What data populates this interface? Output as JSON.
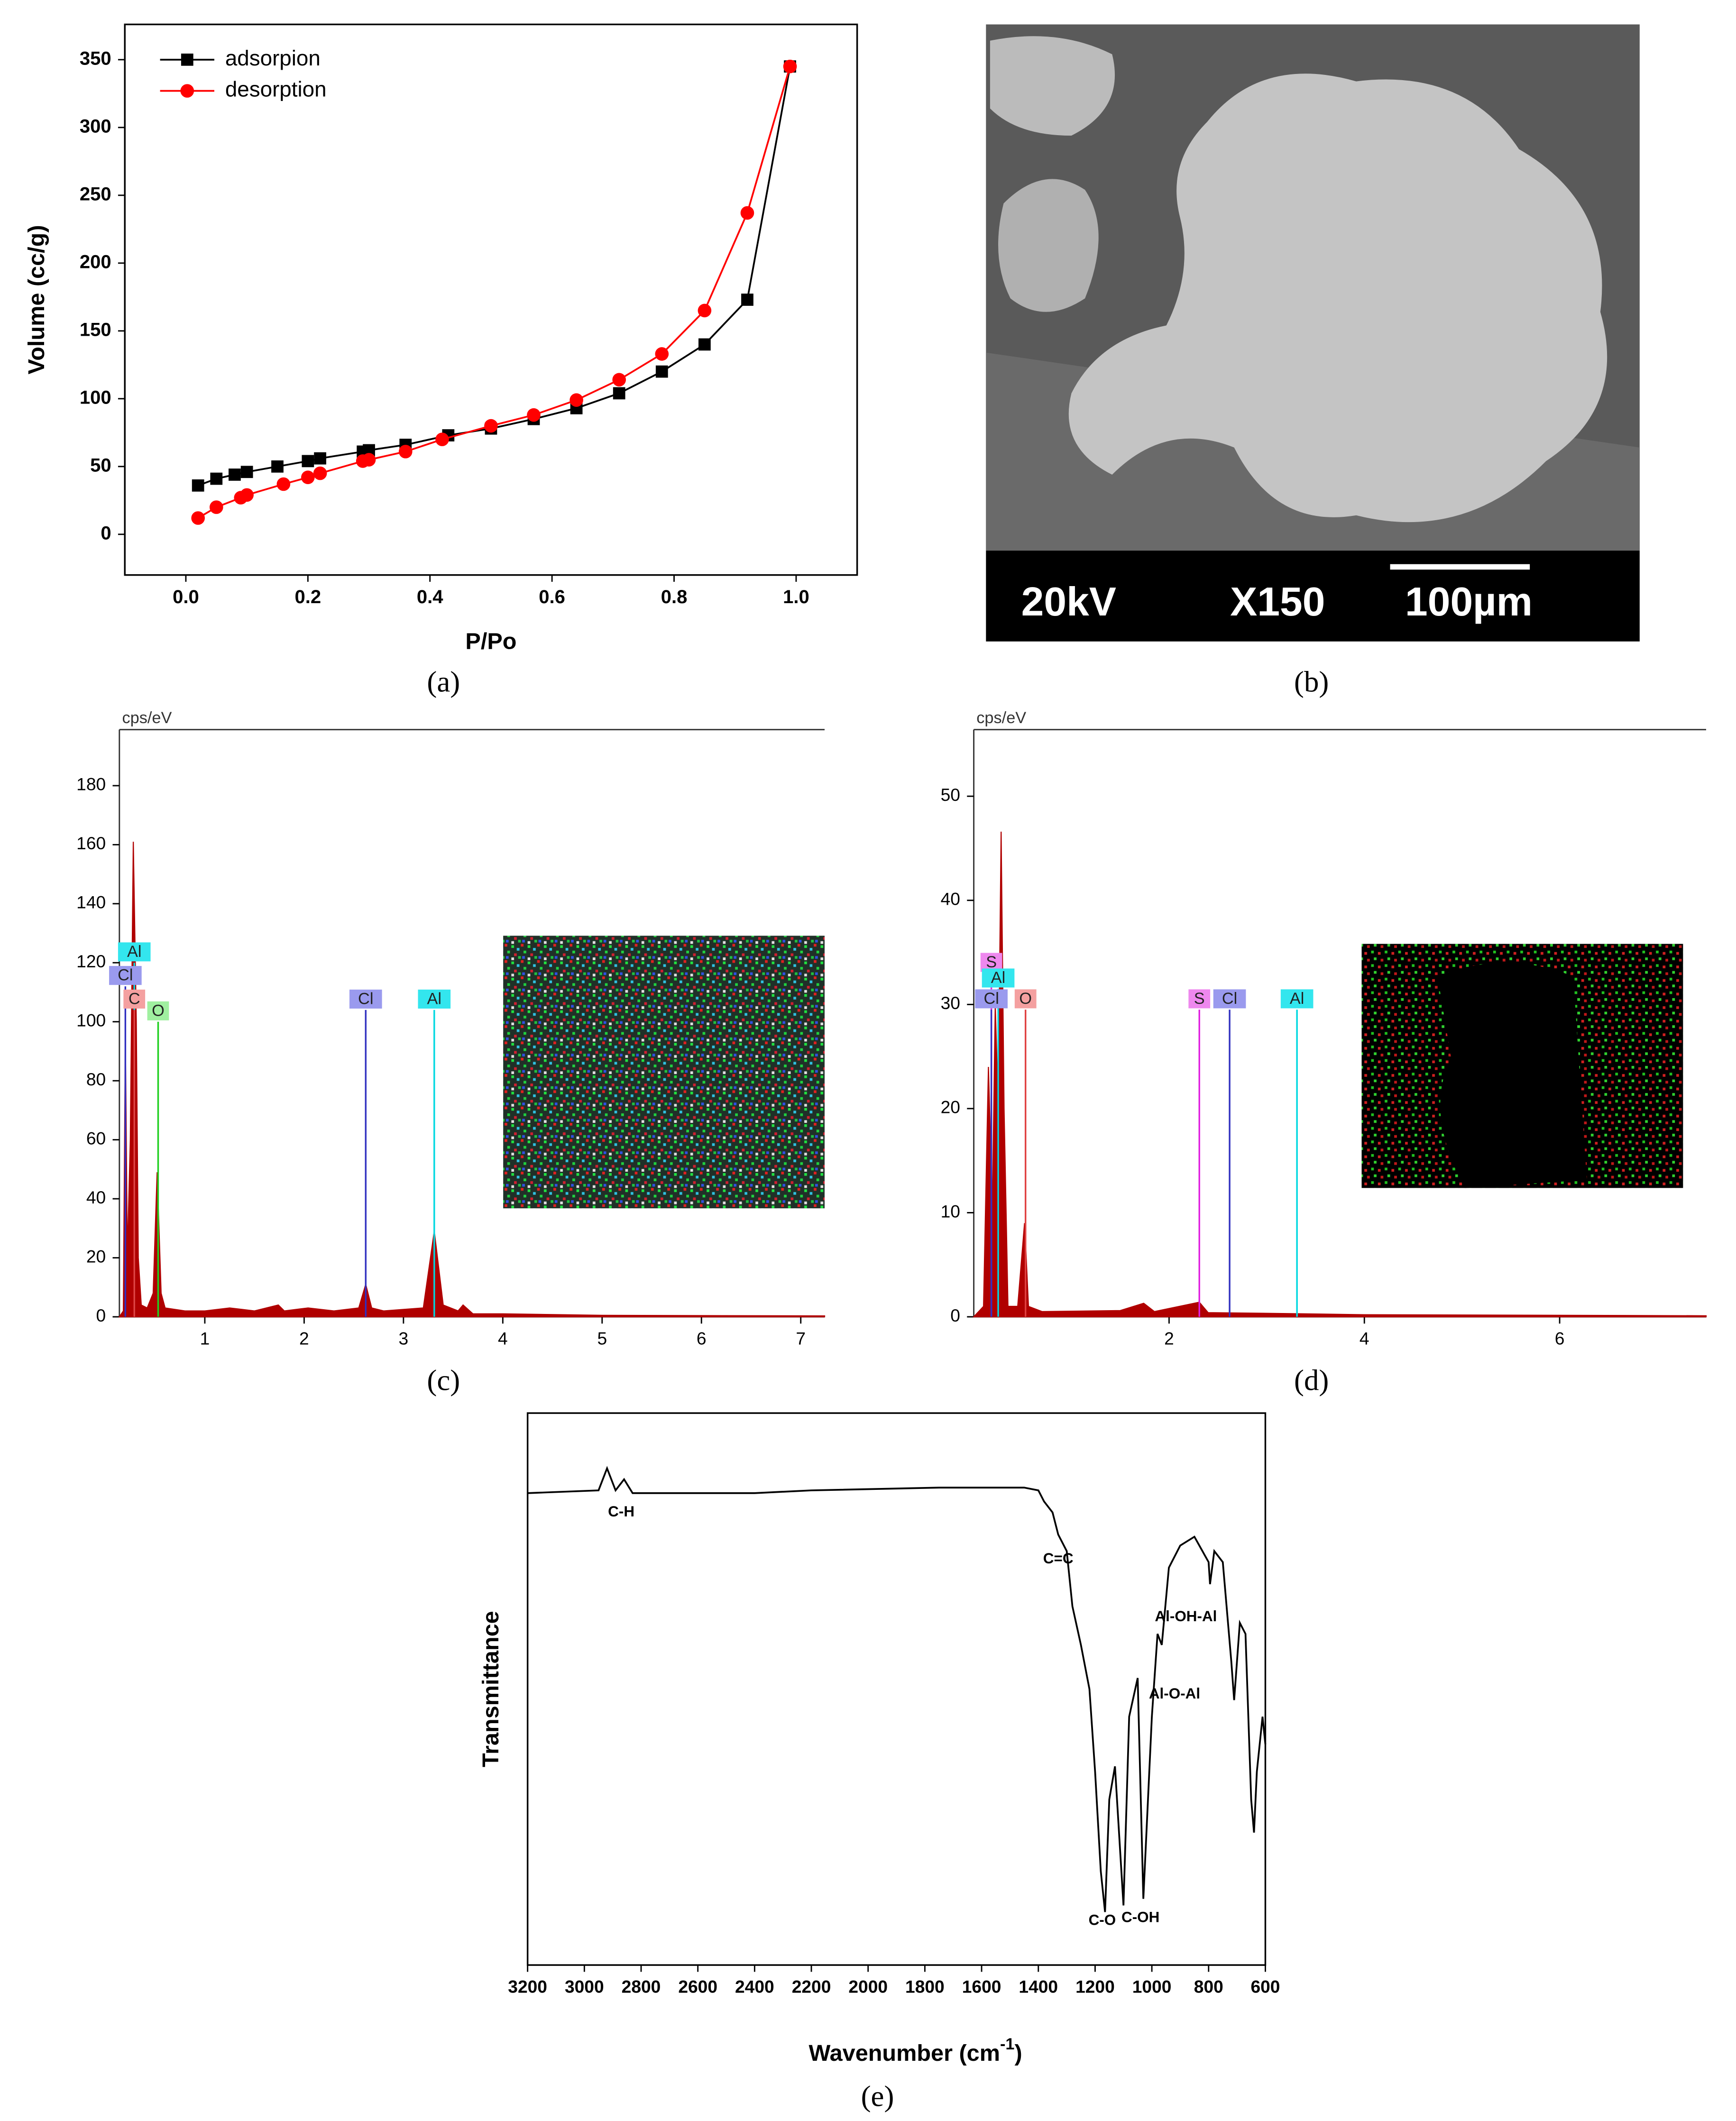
{
  "chart_data": [
    {
      "type": "line",
      "caption": "(a)",
      "xlabel": "P/Po",
      "ylabel": "Volume (cc/g)",
      "xlim": [
        -0.1,
        1.1
      ],
      "ylim": [
        -30,
        376
      ],
      "xticks": [
        {
          "value": 0,
          "label": "0.0"
        },
        0.2,
        0.4,
        0.6,
        0.8,
        {
          "value": 1,
          "label": "1.0"
        }
      ],
      "yticks": [
        0,
        50,
        100,
        150,
        200,
        250,
        300,
        350
      ],
      "legend": "upper left",
      "series": [
        {
          "name": "adsorpion",
          "color": "#000000",
          "marker": "square",
          "x": [
            0.02,
            0.05,
            0.08,
            0.1,
            0.15,
            0.2,
            0.22,
            0.29,
            0.3,
            0.36,
            0.43,
            0.5,
            0.57,
            0.64,
            0.71,
            0.78,
            0.85,
            0.92,
            0.99
          ],
          "values": [
            36,
            41,
            44,
            46,
            50,
            54,
            56,
            61,
            62,
            66,
            73,
            78,
            85,
            93,
            104,
            120,
            140,
            173,
            345
          ]
        },
        {
          "name": "desorption",
          "color": "#ff0000",
          "marker": "circle",
          "x": [
            0.02,
            0.05,
            0.09,
            0.1,
            0.16,
            0.2,
            0.22,
            0.29,
            0.3,
            0.36,
            0.42,
            0.5,
            0.57,
            0.64,
            0.71,
            0.78,
            0.85,
            0.92,
            0.99
          ],
          "values": [
            12,
            20,
            27,
            29,
            37,
            42,
            45,
            54,
            55,
            61,
            70,
            80,
            88,
            99,
            114,
            133,
            165,
            237,
            345
          ]
        }
      ]
    },
    {
      "type": "spectrum",
      "caption": "(c)",
      "ylabel": "cps/eV",
      "xlim": [
        0.14,
        7.24
      ],
      "ylim": [
        0,
        199
      ],
      "xticks": [
        1,
        2,
        3,
        4,
        5,
        6,
        7
      ],
      "yticks": [
        0,
        20,
        40,
        60,
        80,
        100,
        120,
        140,
        160,
        180
      ],
      "series": [
        {
          "color": "#b00000",
          "x": [
            0.14,
            0.18,
            0.2,
            0.22,
            0.25,
            0.28,
            0.31,
            0.33,
            0.36,
            0.42,
            0.48,
            0.52,
            0.56,
            0.6,
            0.8,
            1.0,
            1.25,
            1.5,
            1.74,
            1.8,
            2.04,
            2.3,
            2.55,
            2.62,
            2.68,
            2.8,
            3.2,
            3.31,
            3.4,
            3.55,
            3.6,
            3.7,
            4.0,
            5,
            7.24
          ],
          "values": [
            0,
            2,
            95,
            20,
            60,
            161,
            100,
            20,
            4,
            3,
            8,
            49,
            8,
            3,
            2,
            2,
            3,
            2,
            4,
            2,
            3,
            2,
            3,
            11,
            3,
            2,
            3,
            29,
            4,
            2,
            4,
            1,
            1,
            0.5,
            0.3
          ]
        }
      ],
      "markers": [
        {
          "label": "Al",
          "x": 0.29,
          "height": 120,
          "color": "#00d8e0",
          "box_color": "#33e6ee"
        },
        {
          "label": "Cl",
          "x": 0.2,
          "height": 112,
          "color": "#3030c0",
          "box_color": "#9a9aee"
        },
        {
          "label": "C",
          "x": 0.29,
          "height": 104,
          "color": "#e04040",
          "box_color": "#f4a0a0"
        },
        {
          "label": "O",
          "x": 0.53,
          "height": 100,
          "color": "#20d020",
          "box_color": "#a0f0a0"
        },
        {
          "label": "Cl",
          "x": 2.62,
          "height": 104,
          "color": "#3030c0",
          "box_color": "#9a9aee"
        },
        {
          "label": "Al",
          "x": 3.31,
          "height": 104,
          "color": "#00d8e0",
          "box_color": "#33e6ee"
        }
      ]
    },
    {
      "type": "spectrum",
      "caption": "(d)",
      "ylabel": "cps/eV",
      "xlim": [
        0,
        7.5
      ],
      "ylim": [
        0,
        56.4
      ],
      "xticks": [
        2,
        4,
        6
      ],
      "yticks": [
        0,
        10,
        20,
        30,
        40,
        50
      ],
      "series": [
        {
          "color": "#b00000",
          "x": [
            0,
            0.1,
            0.15,
            0.19,
            0.22,
            0.25,
            0.28,
            0.31,
            0.35,
            0.45,
            0.52,
            0.56,
            0.7,
            1.5,
            1.74,
            1.85,
            2.31,
            2.4,
            3.3,
            4,
            7.5
          ],
          "values": [
            0,
            1,
            24,
            10,
            30,
            20,
            46.6,
            20,
            1,
            1,
            9,
            1,
            0.5,
            0.6,
            1.3,
            0.5,
            1.4,
            0.4,
            0.3,
            0.2,
            0.1
          ]
        }
      ],
      "markers": [
        {
          "label": "S",
          "x": 0.18,
          "height": 33,
          "color": "#e020e0",
          "box_color": "#ee88ee"
        },
        {
          "label": "Al",
          "x": 0.25,
          "height": 31.5,
          "color": "#00d8e0",
          "box_color": "#33e6ee"
        },
        {
          "label": "Cl",
          "x": 0.18,
          "height": 29.5,
          "color": "#3030c0",
          "box_color": "#9a9aee"
        },
        {
          "label": "O",
          "x": 0.53,
          "height": 29.5,
          "color": "#e04040",
          "box_color": "#f4a0a0"
        },
        {
          "label": "S",
          "x": 2.31,
          "height": 29.5,
          "color": "#e020e0",
          "box_color": "#ee88ee"
        },
        {
          "label": "Cl",
          "x": 2.62,
          "height": 29.5,
          "color": "#3030c0",
          "box_color": "#9a9aee"
        },
        {
          "label": "Al",
          "x": 3.31,
          "height": 29.5,
          "color": "#00d8e0",
          "box_color": "#33e6ee"
        }
      ]
    },
    {
      "type": "line",
      "caption": "(e)",
      "xlabel": "Wavenumber (cm",
      "xlabel_sup": "-1",
      "xlabel_end": ")",
      "ylabel": "Transmittance",
      "xlim": [
        3200,
        600
      ],
      "ylim": [
        0,
        100
      ],
      "xticks": [
        3200,
        3000,
        2800,
        2600,
        2400,
        2200,
        2000,
        1800,
        1600,
        1400,
        1200,
        1000,
        800,
        600
      ],
      "series": [
        {
          "color": "#000000",
          "x": [
            3200,
            2950,
            2920,
            2890,
            2860,
            2830,
            2400,
            2200,
            1750,
            1450,
            1400,
            1380,
            1350,
            1330,
            1300,
            1280,
            1250,
            1220,
            1200,
            1180,
            1165,
            1150,
            1130,
            1100,
            1080,
            1050,
            1030,
            1000,
            980,
            965,
            940,
            900,
            850,
            800,
            795,
            780,
            750,
            720,
            710,
            690,
            670,
            650,
            640,
            630,
            610,
            600
          ],
          "values": [
            85.5,
            86,
            90,
            86,
            88,
            85.5,
            85.5,
            86,
            86.5,
            86.5,
            86,
            84,
            82,
            78,
            75,
            65,
            58,
            50,
            35,
            17,
            9.6,
            30,
            36,
            10.8,
            45,
            52,
            12,
            45,
            60,
            58,
            72,
            76,
            77.6,
            73,
            69,
            75,
            73,
            55,
            48,
            62,
            60,
            30,
            24,
            35,
            45,
            40
          ]
        }
      ],
      "annotations": [
        {
          "text": "C-H",
          "x": 2870,
          "y": 82
        },
        {
          "text": "C=C",
          "x": 1330,
          "y": 73.5
        },
        {
          "text": "Al-OH-Al",
          "x": 880,
          "y": 63
        },
        {
          "text": "Al-O-Al",
          "x": 920,
          "y": 49
        },
        {
          "text": "C-O",
          "x": 1175,
          "y": 8
        },
        {
          "text": "C-OH",
          "x": 1040,
          "y": 8.5
        }
      ]
    }
  ],
  "sem_image": {
    "caption": "(b)",
    "voltage": "20kV",
    "magnification": "X150",
    "scale": "100µm"
  }
}
